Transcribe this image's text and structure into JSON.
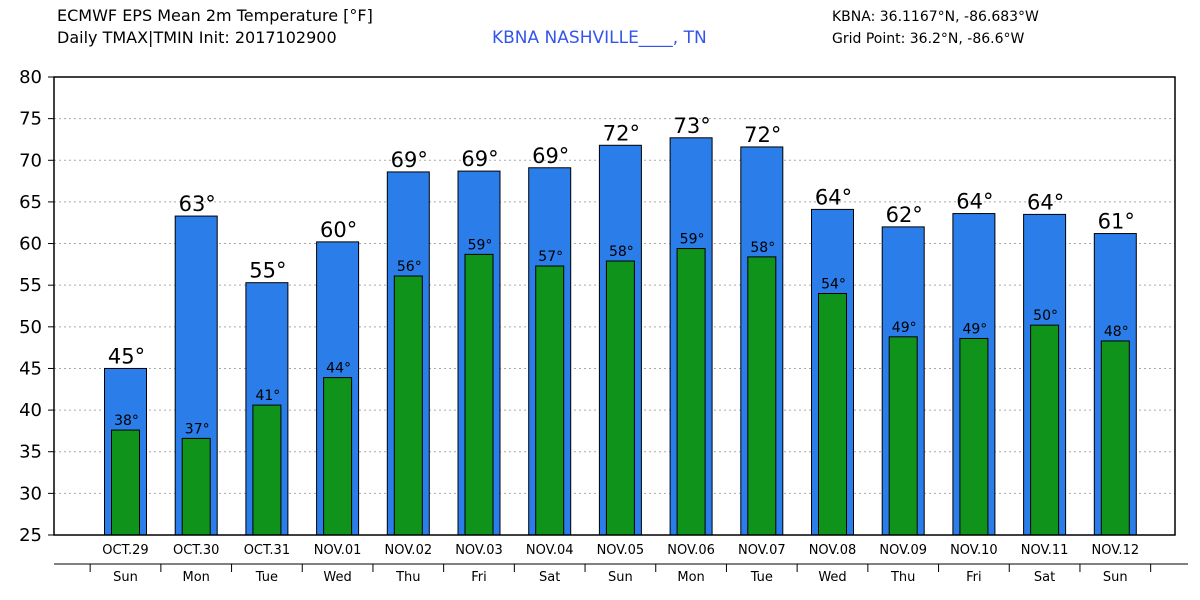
{
  "header": {
    "title": "ECMWF EPS Mean 2m Temperature [°F]",
    "subtitle": "Daily TMAX|TMIN Init: 2017102900",
    "station": "KBNA NASHVILLE____, TN",
    "station_coords": "KBNA: 36.1167°N, -86.683°W",
    "grid_point": "Grid Point: 36.2°N, -86.6°W"
  },
  "chart_data": {
    "type": "bar",
    "title": "ECMWF EPS Mean 2m Temperature [°F]",
    "ylim": [
      25,
      80
    ],
    "yticks": [
      25,
      30,
      35,
      40,
      45,
      50,
      55,
      60,
      65,
      70,
      75,
      80
    ],
    "grid": true,
    "categories": [
      "OCT.29",
      "OCT.30",
      "OCT.31",
      "NOV.01",
      "NOV.02",
      "NOV.03",
      "NOV.04",
      "NOV.05",
      "NOV.06",
      "NOV.07",
      "NOV.08",
      "NOV.09",
      "NOV.10",
      "NOV.11",
      "NOV.12"
    ],
    "weekdays": [
      "Sun",
      "Mon",
      "Tue",
      "Wed",
      "Thu",
      "Fri",
      "Sat",
      "Sun",
      "Mon",
      "Tue",
      "Wed",
      "Thu",
      "Fri",
      "Sat",
      "Sun"
    ],
    "series": [
      {
        "name": "TMAX",
        "color": "#2b7de9",
        "values": [
          45,
          63.3,
          55.3,
          60.2,
          68.6,
          68.7,
          69.1,
          71.8,
          72.7,
          71.6,
          64.1,
          62.0,
          63.6,
          63.5,
          61.2
        ],
        "labels": [
          "45°",
          "63°",
          "55°",
          "60°",
          "69°",
          "69°",
          "69°",
          "72°",
          "73°",
          "72°",
          "64°",
          "62°",
          "64°",
          "64°",
          "61°"
        ]
      },
      {
        "name": "TMIN",
        "color": "#10931a",
        "values": [
          37.6,
          36.6,
          40.6,
          43.9,
          56.1,
          58.7,
          57.3,
          57.9,
          59.4,
          58.4,
          54.0,
          48.8,
          48.6,
          50.2,
          48.3
        ],
        "labels": [
          "38°",
          "37°",
          "41°",
          "44°",
          "56°",
          "59°",
          "57°",
          "58°",
          "59°",
          "58°",
          "54°",
          "49°",
          "49°",
          "50°",
          "48°"
        ]
      }
    ]
  }
}
